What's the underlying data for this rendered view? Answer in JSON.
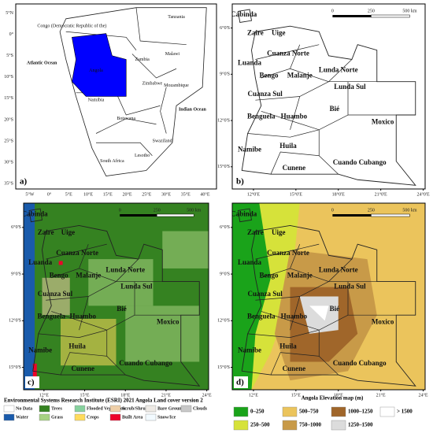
{
  "panel_a": {
    "label": "a)",
    "lat_ticks": [
      "5°N",
      "0°",
      "5°S",
      "10°S",
      "15°S",
      "20°S",
      "25°S",
      "30°S",
      "35°S"
    ],
    "lon_ticks": [
      "5°W",
      "0°",
      "5°E",
      "10°E",
      "15°E",
      "20°E",
      "25°E",
      "30°E",
      "35°E",
      "40°E"
    ],
    "places": [
      "Congo (Democratic Republic of the)",
      "Tanzania",
      "Atlantic Ocean",
      "Angola",
      "Zambia",
      "Malawi",
      "Mozambique",
      "Zimbabwe",
      "Namibia",
      "Botswana",
      "Indian Ocean",
      "Swaziland",
      "South Africa",
      "Lesotho"
    ]
  },
  "panel_b": {
    "label": "b)"
  },
  "panel_c": {
    "label": "c)"
  },
  "panel_d": {
    "label": "d)"
  },
  "provinces": [
    "Cabinda",
    "Zaire",
    "Uige",
    "Luanda",
    "Cuanza Norte",
    "Bengo",
    "Malanje",
    "Lunda Norte",
    "Lunda Sul",
    "Cuanza Sul",
    "Benguela",
    "Huambo",
    "Bié",
    "Moxico",
    "Namibe",
    "Huila",
    "Cunene",
    "Cuando Cubango"
  ],
  "lat_ticks": [
    "6°0'S",
    "9°0'S",
    "12°0'S",
    "15°0'S"
  ],
  "lon_ticks": [
    "12°0'E",
    "15°0'E",
    "18°0'E",
    "21°0'E",
    "24°0'E"
  ],
  "lon_ticks_short": [
    "12°E",
    "15°E",
    "18°E",
    "21°E",
    "24°E"
  ],
  "scale_bar": [
    "0",
    "250",
    "500 km"
  ],
  "landcover_legend": {
    "title": "Environmental Systems Research Institute (ESRI) 2021 Angola Land cover version 2",
    "items": [
      {
        "name": "No Data",
        "color": "#ffffff"
      },
      {
        "name": "Trees",
        "color": "#358221"
      },
      {
        "name": "Flooded Vegetation",
        "color": "#87d19e"
      },
      {
        "name": "Scrub/Shrub",
        "color": "#efcfa8"
      },
      {
        "name": "Bare Ground",
        "color": "#ede9e4"
      },
      {
        "name": "Clouds",
        "color": "#c8c8c8"
      },
      {
        "name": "Water",
        "color": "#1a5bab"
      },
      {
        "name": "Grass",
        "color": "#a7d282"
      },
      {
        "name": "Crops",
        "color": "#ffdb5c"
      },
      {
        "name": "Built Area",
        "color": "#ed022a"
      },
      {
        "name": "Snow/Ice",
        "color": "#f2faff"
      }
    ]
  },
  "elevation_legend": {
    "title": "Angola Elevation map (m)",
    "items": [
      {
        "name": "0–250",
        "color": "#1aa31a"
      },
      {
        "name": "250–500",
        "color": "#d6e23a"
      },
      {
        "name": "500–750",
        "color": "#ebc45c"
      },
      {
        "name": "750–1000",
        "color": "#c89a48"
      },
      {
        "name": "1000–1250",
        "color": "#a0662a"
      },
      {
        "name": "1250–1500",
        "color": "#dcdcdc"
      },
      {
        "name": "> 1500",
        "color": "#ffffff"
      }
    ]
  }
}
